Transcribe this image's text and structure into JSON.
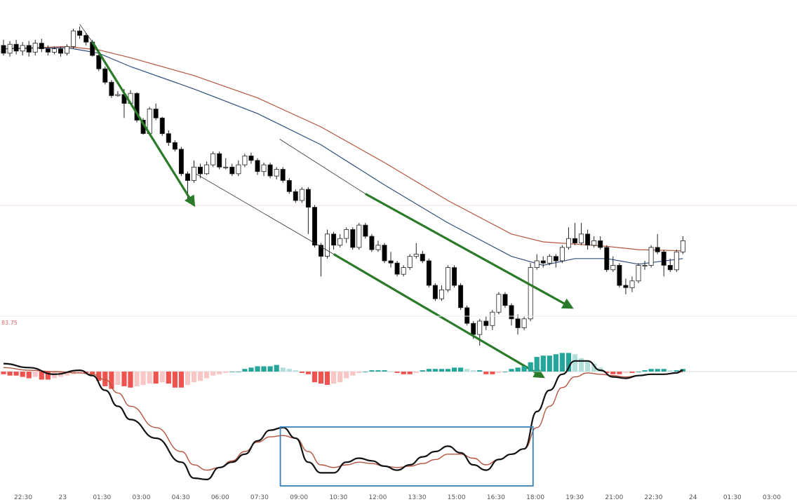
{
  "chart_data": {
    "type": "candlestick",
    "title": "",
    "x_tick_labels": [
      "22:30",
      "23",
      "01:30",
      "03:00",
      "04:30",
      "06:00",
      "07:30",
      "09:00",
      "10:30",
      "12:00",
      "13:30",
      "15:00",
      "16:30",
      "18:00",
      "19:30",
      "21:00",
      "22:30",
      "24",
      "01:30",
      "03:00"
    ],
    "colors": {
      "up_candle": "#ffffff",
      "down_candle": "#000000",
      "candle_outline": "#222222",
      "fast_ma": "#2f4f7f",
      "slow_ma": "#b5553f",
      "trend_arrow": "#2a7a2a",
      "macd_line": "#111111",
      "signal_line": "#b5553f",
      "hist_pos_strong": "#26a69a",
      "hist_pos_weak": "#b2dfdb",
      "hist_neg_strong": "#ef5350",
      "hist_neg_weak": "#f8c7c5",
      "highlight_box": "#3a7fb5"
    },
    "macd_panel": {
      "value_label": "83.75",
      "zero_line": 0
    },
    "candles": [
      [
        0,
        100.5,
        99.8,
        101.0,
        99.6
      ],
      [
        1,
        99.8,
        100.6,
        100.9,
        99.5
      ],
      [
        2,
        100.6,
        100.0,
        101.0,
        99.7
      ],
      [
        3,
        100.0,
        100.5,
        100.8,
        99.6
      ],
      [
        4,
        100.5,
        99.9,
        100.9,
        99.5
      ],
      [
        5,
        99.9,
        100.7,
        101.0,
        99.6
      ],
      [
        6,
        100.7,
        100.2,
        101.1,
        99.9
      ],
      [
        7,
        100.2,
        99.9,
        100.5,
        99.6
      ],
      [
        8,
        99.9,
        100.2,
        100.4,
        99.7
      ],
      [
        9,
        100.2,
        99.8,
        100.4,
        99.5
      ],
      [
        10,
        99.8,
        100.4,
        100.6,
        99.6
      ],
      [
        11,
        100.4,
        101.8,
        102.0,
        100.2
      ],
      [
        12,
        101.8,
        101.4,
        102.2,
        101.1
      ],
      [
        13,
        101.4,
        100.8,
        101.6,
        100.5
      ],
      [
        14,
        100.8,
        99.6,
        101.0,
        99.5
      ],
      [
        15,
        99.6,
        98.4,
        99.7,
        98.2
      ],
      [
        16,
        98.4,
        97.2,
        98.6,
        97.0
      ],
      [
        17,
        97.2,
        96.0,
        97.4,
        95.8
      ],
      [
        18,
        96.0,
        96.1,
        96.4,
        95.9
      ],
      [
        19,
        96.1,
        95.3,
        96.6,
        94.0
      ],
      [
        20,
        95.3,
        96.2,
        96.5,
        95.2
      ],
      [
        21,
        96.2,
        93.8,
        96.3,
        93.6
      ],
      [
        22,
        93.8,
        92.6,
        94.0,
        92.5
      ],
      [
        23,
        92.6,
        94.8,
        95.0,
        92.4
      ],
      [
        24,
        94.8,
        94.0,
        95.3,
        93.8
      ],
      [
        25,
        94.0,
        92.6,
        94.1,
        92.4
      ],
      [
        26,
        92.6,
        91.8,
        92.9,
        91.5
      ],
      [
        27,
        91.8,
        91.2,
        92.0,
        91.0
      ],
      [
        28,
        91.2,
        89.0,
        91.4,
        88.8
      ],
      [
        29,
        89.0,
        88.4,
        89.2,
        86.5
      ],
      [
        30,
        88.4,
        89.6,
        90.2,
        88.2
      ],
      [
        31,
        89.6,
        89.0,
        89.9,
        88.6
      ],
      [
        32,
        89.0,
        89.8,
        90.1,
        88.9
      ],
      [
        33,
        89.8,
        90.8,
        91.0,
        89.6
      ],
      [
        34,
        90.8,
        89.6,
        91.0,
        89.4
      ],
      [
        35,
        89.6,
        89.6,
        90.4,
        89.4
      ],
      [
        36,
        89.6,
        89.0,
        89.9,
        88.8
      ],
      [
        37,
        89.0,
        89.8,
        90.2,
        88.8
      ],
      [
        38,
        89.8,
        90.6,
        90.8,
        89.6
      ],
      [
        39,
        90.6,
        90.2,
        90.9,
        89.9
      ],
      [
        40,
        90.2,
        89.2,
        90.4,
        88.9
      ],
      [
        41,
        89.2,
        89.8,
        90.0,
        88.8
      ],
      [
        42,
        89.8,
        88.8,
        90.0,
        88.6
      ],
      [
        43,
        88.8,
        89.4,
        89.6,
        88.5
      ],
      [
        44,
        89.4,
        88.4,
        89.6,
        88.2
      ],
      [
        45,
        88.4,
        87.4,
        88.6,
        87.2
      ],
      [
        46,
        87.4,
        86.6,
        87.6,
        86.4
      ],
      [
        47,
        86.6,
        87.6,
        87.8,
        86.4
      ],
      [
        48,
        87.6,
        86.0,
        87.8,
        83.6
      ],
      [
        49,
        86.0,
        82.6,
        86.2,
        82.4
      ],
      [
        50,
        82.6,
        81.6,
        82.8,
        79.8
      ],
      [
        51,
        81.6,
        83.6,
        84.0,
        81.4
      ],
      [
        52,
        83.6,
        82.6,
        83.8,
        82.2
      ],
      [
        53,
        82.6,
        83.2,
        83.6,
        82.4
      ],
      [
        54,
        83.2,
        84.0,
        84.2,
        82.8
      ],
      [
        55,
        84.0,
        82.4,
        84.2,
        82.2
      ],
      [
        56,
        82.4,
        84.4,
        84.6,
        82.2
      ],
      [
        57,
        84.4,
        83.4,
        84.6,
        83.2
      ],
      [
        58,
        83.4,
        82.2,
        83.6,
        82.0
      ],
      [
        59,
        82.2,
        82.6,
        83.0,
        82.0
      ],
      [
        60,
        82.6,
        81.2,
        82.8,
        81.0
      ],
      [
        61,
        81.2,
        81.0,
        82.0,
        80.6
      ],
      [
        62,
        81.0,
        80.0,
        81.2,
        79.8
      ],
      [
        63,
        80.0,
        80.6,
        80.8,
        79.8
      ],
      [
        64,
        80.6,
        81.6,
        81.8,
        80.4
      ],
      [
        65,
        81.6,
        81.8,
        82.8,
        81.4
      ],
      [
        66,
        81.8,
        81.2,
        82.1,
        81.0
      ],
      [
        67,
        81.2,
        79.0,
        81.4,
        78.8
      ],
      [
        68,
        79.0,
        77.8,
        79.2,
        77.6
      ],
      [
        69,
        77.8,
        78.6,
        79.0,
        77.6
      ],
      [
        70,
        78.6,
        80.6,
        80.8,
        78.4
      ],
      [
        71,
        80.6,
        79.0,
        80.8,
        78.8
      ],
      [
        72,
        79.0,
        77.0,
        79.2,
        76.8
      ],
      [
        73,
        77.0,
        75.6,
        77.2,
        75.4
      ],
      [
        74,
        75.6,
        74.6,
        75.8,
        74.2
      ],
      [
        75,
        74.6,
        75.8,
        76.0,
        73.6
      ],
      [
        76,
        75.8,
        75.4,
        76.2,
        75.0
      ],
      [
        77,
        75.4,
        76.6,
        76.8,
        75.0
      ],
      [
        78,
        76.6,
        78.2,
        78.4,
        76.4
      ],
      [
        79,
        78.2,
        77.2,
        78.4,
        77.0
      ],
      [
        80,
        77.2,
        76.0,
        77.4,
        75.4
      ],
      [
        81,
        76.0,
        75.2,
        76.4,
        74.6
      ],
      [
        82,
        75.2,
        76.0,
        76.2,
        75.0
      ],
      [
        83,
        76.0,
        80.6,
        81.0,
        75.8
      ],
      [
        84,
        80.6,
        81.2,
        81.8,
        80.4
      ],
      [
        85,
        81.2,
        81.0,
        81.6,
        80.6
      ],
      [
        86,
        81.0,
        81.6,
        81.8,
        80.8
      ],
      [
        87,
        81.6,
        81.2,
        81.8,
        80.6
      ],
      [
        88,
        81.2,
        82.4,
        82.6,
        81.0
      ],
      [
        89,
        82.4,
        83.2,
        84.2,
        82.2
      ],
      [
        90,
        83.2,
        82.8,
        84.6,
        82.6
      ],
      [
        91,
        82.8,
        83.6,
        84.6,
        82.6
      ],
      [
        92,
        83.6,
        82.6,
        84.0,
        82.2
      ],
      [
        93,
        82.6,
        83.0,
        83.4,
        82.4
      ],
      [
        94,
        83.0,
        82.4,
        83.4,
        82.2
      ],
      [
        95,
        82.4,
        80.4,
        82.6,
        80.2
      ],
      [
        96,
        80.4,
        80.8,
        81.6,
        80.2
      ],
      [
        97,
        80.8,
        79.0,
        81.0,
        78.8
      ],
      [
        98,
        79.0,
        78.8,
        79.6,
        78.2
      ],
      [
        99,
        78.8,
        79.4,
        79.8,
        78.4
      ],
      [
        100,
        79.4,
        80.8,
        81.0,
        79.2
      ],
      [
        101,
        80.8,
        80.8,
        81.2,
        80.4
      ],
      [
        102,
        80.8,
        82.4,
        82.6,
        80.6
      ],
      [
        103,
        82.4,
        82.0,
        83.6,
        81.8
      ],
      [
        104,
        82.0,
        80.8,
        82.2,
        79.8
      ],
      [
        105,
        80.8,
        80.4,
        81.4,
        80.2
      ],
      [
        106,
        80.4,
        82.0,
        82.2,
        80.2
      ],
      [
        107,
        82.0,
        83.0,
        83.4,
        81.8
      ]
    ],
    "fast_ma": [
      [
        0,
        100.2
      ],
      [
        10,
        100.3
      ],
      [
        15,
        99.8
      ],
      [
        20,
        98.6
      ],
      [
        30,
        96.6
      ],
      [
        40,
        94.4
      ],
      [
        50,
        91.6
      ],
      [
        60,
        88.0
      ],
      [
        70,
        84.6
      ],
      [
        80,
        81.6
      ],
      [
        85,
        80.8
      ],
      [
        90,
        81.4
      ],
      [
        95,
        81.4
      ],
      [
        100,
        80.9
      ],
      [
        107,
        81.4
      ]
    ],
    "slow_ma": [
      [
        0,
        100.2
      ],
      [
        10,
        100.4
      ],
      [
        15,
        100.1
      ],
      [
        20,
        99.4
      ],
      [
        30,
        97.8
      ],
      [
        40,
        95.8
      ],
      [
        50,
        93.2
      ],
      [
        60,
        90.0
      ],
      [
        70,
        86.6
      ],
      [
        80,
        83.6
      ],
      [
        85,
        82.9
      ],
      [
        95,
        82.5
      ],
      [
        100,
        82.2
      ],
      [
        107,
        82.1
      ]
    ],
    "macd_line": [
      [
        0,
        6
      ],
      [
        4,
        3
      ],
      [
        8,
        -2
      ],
      [
        12,
        1
      ],
      [
        14,
        -3
      ],
      [
        16,
        -14
      ],
      [
        18,
        -26
      ],
      [
        20,
        -36
      ],
      [
        24,
        -50
      ],
      [
        28,
        -68
      ],
      [
        30,
        -80
      ],
      [
        32,
        -81
      ],
      [
        34,
        -72
      ],
      [
        36,
        -68
      ],
      [
        38,
        -62
      ],
      [
        40,
        -52
      ],
      [
        42,
        -44
      ],
      [
        44,
        -42
      ],
      [
        46,
        -50
      ],
      [
        48,
        -68
      ],
      [
        50,
        -76
      ],
      [
        52,
        -76
      ],
      [
        54,
        -68
      ],
      [
        56,
        -65
      ],
      [
        58,
        -67
      ],
      [
        60,
        -71
      ],
      [
        62,
        -74
      ],
      [
        64,
        -70
      ],
      [
        66,
        -64
      ],
      [
        68,
        -60
      ],
      [
        70,
        -56
      ],
      [
        72,
        -61
      ],
      [
        74,
        -70
      ],
      [
        76,
        -74
      ],
      [
        78,
        -66
      ],
      [
        80,
        -62
      ],
      [
        82,
        -58
      ],
      [
        84,
        -30
      ],
      [
        86,
        -14
      ],
      [
        88,
        -2
      ],
      [
        90,
        8
      ],
      [
        92,
        8
      ],
      [
        94,
        1
      ],
      [
        96,
        -4
      ],
      [
        98,
        -5
      ],
      [
        100,
        -3
      ],
      [
        102,
        -2
      ],
      [
        104,
        -2
      ],
      [
        106,
        -1
      ],
      [
        107,
        1
      ]
    ],
    "signal_line": [
      [
        0,
        3
      ],
      [
        4,
        1
      ],
      [
        8,
        0
      ],
      [
        12,
        -1
      ],
      [
        14,
        -2
      ],
      [
        16,
        -6
      ],
      [
        18,
        -16
      ],
      [
        20,
        -26
      ],
      [
        24,
        -42
      ],
      [
        28,
        -60
      ],
      [
        30,
        -70
      ],
      [
        32,
        -74
      ],
      [
        34,
        -72
      ],
      [
        36,
        -67
      ],
      [
        38,
        -60
      ],
      [
        40,
        -53
      ],
      [
        42,
        -49
      ],
      [
        44,
        -48
      ],
      [
        46,
        -50
      ],
      [
        48,
        -60
      ],
      [
        50,
        -70
      ],
      [
        52,
        -72
      ],
      [
        54,
        -70
      ],
      [
        56,
        -68
      ],
      [
        58,
        -69
      ],
      [
        60,
        -71
      ],
      [
        62,
        -72
      ],
      [
        64,
        -71
      ],
      [
        66,
        -69
      ],
      [
        68,
        -66
      ],
      [
        70,
        -62
      ],
      [
        72,
        -62
      ],
      [
        74,
        -65
      ],
      [
        76,
        -70
      ],
      [
        78,
        -66
      ],
      [
        80,
        -62
      ],
      [
        82,
        -58
      ],
      [
        84,
        -42
      ],
      [
        86,
        -26
      ],
      [
        88,
        -12
      ],
      [
        90,
        -4
      ],
      [
        92,
        -1
      ],
      [
        94,
        -2
      ],
      [
        96,
        -3
      ],
      [
        98,
        -4
      ],
      [
        100,
        -3
      ],
      [
        102,
        -2
      ],
      [
        104,
        -2
      ],
      [
        106,
        -1
      ],
      [
        107,
        0
      ]
    ],
    "histogram": [
      [
        0,
        -2
      ],
      [
        1,
        -3
      ],
      [
        2,
        -3
      ],
      [
        3,
        -4
      ],
      [
        4,
        -5
      ],
      [
        5,
        -4
      ],
      [
        6,
        -6
      ],
      [
        7,
        -6
      ],
      [
        8,
        -5
      ],
      [
        9,
        -4
      ],
      [
        10,
        -3
      ],
      [
        11,
        -2
      ],
      [
        12,
        -1
      ],
      [
        13,
        -1
      ],
      [
        14,
        -2
      ],
      [
        15,
        -7
      ],
      [
        16,
        -11
      ],
      [
        17,
        -13
      ],
      [
        18,
        -10
      ],
      [
        19,
        -11
      ],
      [
        20,
        -12
      ],
      [
        21,
        -11
      ],
      [
        22,
        -10
      ],
      [
        23,
        -9
      ],
      [
        24,
        -9
      ],
      [
        25,
        -8
      ],
      [
        26,
        -9
      ],
      [
        27,
        -12
      ],
      [
        28,
        -12
      ],
      [
        29,
        -10
      ],
      [
        30,
        -8
      ],
      [
        31,
        -7
      ],
      [
        32,
        -5
      ],
      [
        33,
        -3
      ],
      [
        34,
        -2
      ],
      [
        35,
        -1
      ],
      [
        36,
        0
      ],
      [
        37,
        0
      ],
      [
        38,
        2
      ],
      [
        39,
        3
      ],
      [
        40,
        4
      ],
      [
        41,
        4
      ],
      [
        42,
        4
      ],
      [
        43,
        5
      ],
      [
        44,
        3
      ],
      [
        45,
        2
      ],
      [
        46,
        1
      ],
      [
        47,
        -1
      ],
      [
        48,
        -2
      ],
      [
        49,
        -8
      ],
      [
        50,
        -9
      ],
      [
        51,
        -10
      ],
      [
        52,
        -9
      ],
      [
        53,
        -8
      ],
      [
        54,
        -5
      ],
      [
        55,
        -3
      ],
      [
        56,
        -1
      ],
      [
        57,
        0
      ],
      [
        58,
        1
      ],
      [
        59,
        1
      ],
      [
        60,
        1
      ],
      [
        61,
        0
      ],
      [
        62,
        -1
      ],
      [
        63,
        -2
      ],
      [
        64,
        -2
      ],
      [
        65,
        -1
      ],
      [
        66,
        1
      ],
      [
        67,
        2
      ],
      [
        68,
        2
      ],
      [
        69,
        2
      ],
      [
        70,
        2
      ],
      [
        71,
        3
      ],
      [
        72,
        3
      ],
      [
        73,
        2
      ],
      [
        74,
        1
      ],
      [
        75,
        1
      ],
      [
        76,
        -2
      ],
      [
        77,
        -2
      ],
      [
        78,
        -1
      ],
      [
        79,
        0
      ],
      [
        80,
        2
      ],
      [
        81,
        3
      ],
      [
        82,
        4
      ],
      [
        83,
        7
      ],
      [
        84,
        11
      ],
      [
        85,
        12
      ],
      [
        86,
        12
      ],
      [
        87,
        13
      ],
      [
        88,
        14
      ],
      [
        89,
        14
      ],
      [
        90,
        13
      ],
      [
        91,
        10
      ],
      [
        92,
        8
      ],
      [
        93,
        6
      ],
      [
        94,
        3
      ],
      [
        95,
        -1
      ],
      [
        96,
        -2
      ],
      [
        97,
        -2
      ],
      [
        98,
        -1
      ],
      [
        99,
        -1
      ],
      [
        100,
        0
      ],
      [
        101,
        1
      ],
      [
        102,
        2
      ],
      [
        103,
        2
      ],
      [
        104,
        2
      ],
      [
        105,
        1
      ],
      [
        106,
        1
      ],
      [
        107,
        2
      ]
    ]
  }
}
